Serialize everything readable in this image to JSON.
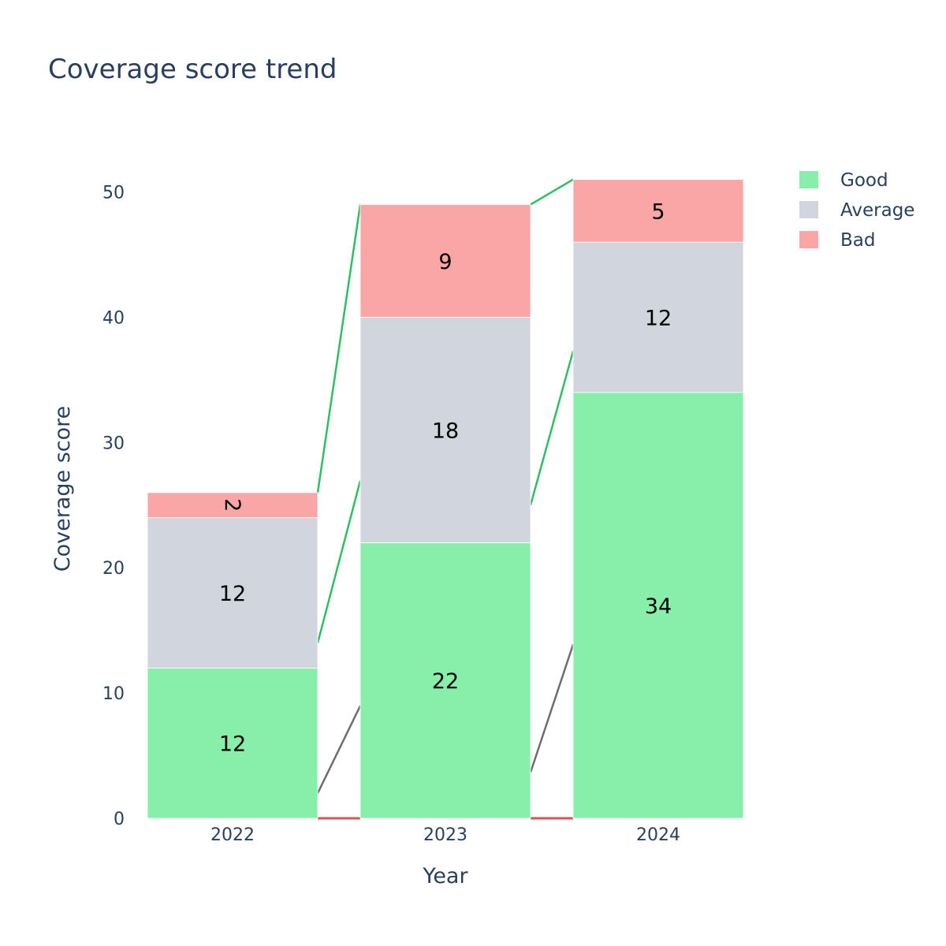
{
  "chart_data": {
    "type": "bar",
    "stacked": true,
    "title": "Coverage score trend",
    "xlabel": "Year",
    "ylabel": "Coverage score",
    "categories": [
      "2022",
      "2023",
      "2024"
    ],
    "ylim": [
      0,
      54
    ],
    "yticks": [
      0,
      10,
      20,
      30,
      40,
      50
    ],
    "grid": false,
    "legend": "top-right",
    "series": [
      {
        "name": "Good",
        "values": [
          12,
          22,
          34
        ],
        "color": "#88efab"
      },
      {
        "name": "Average",
        "values": [
          12,
          18,
          12
        ],
        "color": "#d1d5de"
      },
      {
        "name": "Bad",
        "values": [
          2,
          9,
          5
        ],
        "color": "#faa6a6"
      }
    ],
    "connector_colors": {
      "total": "#2dbf63",
      "middle": "#2dbf63",
      "lower": "#706b76",
      "base": "#e0504c"
    }
  }
}
